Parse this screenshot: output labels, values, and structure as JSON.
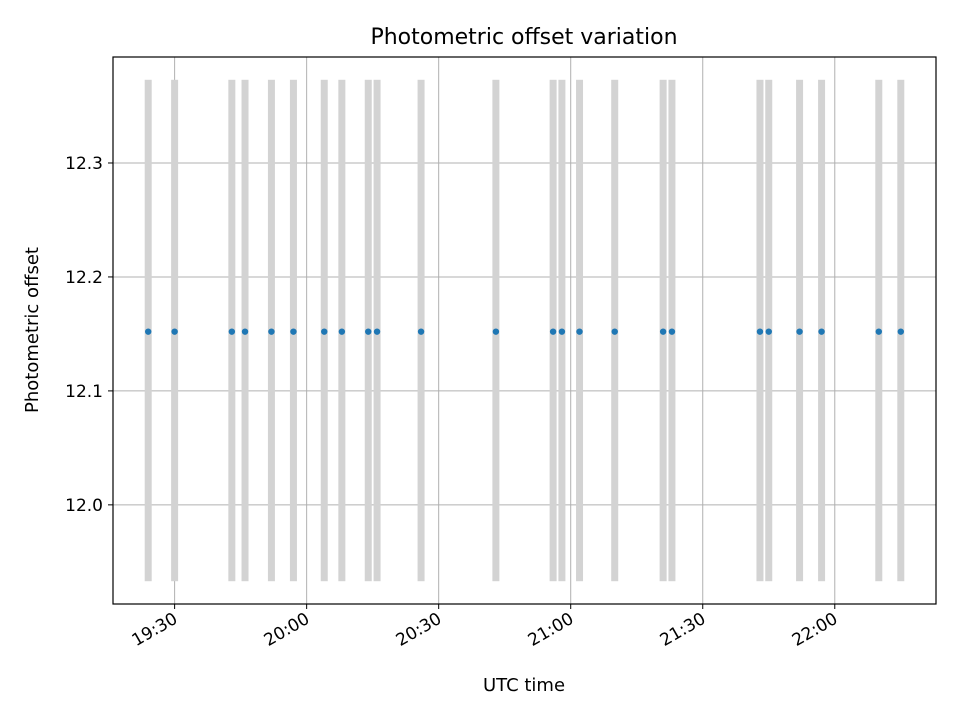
{
  "chart_data": {
    "type": "scatter",
    "title": "Photometric offset variation",
    "xlabel": "UTC time",
    "ylabel": "Photometric offset",
    "xlim": [
      "19:16",
      "22:23"
    ],
    "ylim": [
      11.913,
      12.393
    ],
    "x_ticks": [
      "19:30",
      "20:00",
      "20:30",
      "21:00",
      "21:30",
      "22:00"
    ],
    "y_ticks": [
      12.0,
      12.1,
      12.2,
      12.3
    ],
    "grid": true,
    "series_color": "#1f77b4",
    "band_color": "#d3d3d3",
    "band_range": [
      11.933,
      12.373
    ],
    "times": [
      "19:24",
      "19:30",
      "19:43",
      "19:46",
      "19:52",
      "19:57",
      "20:04",
      "20:08",
      "20:14",
      "20:16",
      "20:26",
      "20:43",
      "20:56",
      "20:58",
      "21:02",
      "21:10",
      "21:21",
      "21:23",
      "21:43",
      "21:45",
      "21:52",
      "21:57",
      "22:10",
      "22:15"
    ],
    "values": [
      12.152,
      12.152,
      12.152,
      12.152,
      12.152,
      12.152,
      12.152,
      12.152,
      12.152,
      12.152,
      12.152,
      12.152,
      12.152,
      12.152,
      12.152,
      12.152,
      12.152,
      12.152,
      12.152,
      12.152,
      12.152,
      12.152,
      12.152,
      12.152
    ]
  }
}
